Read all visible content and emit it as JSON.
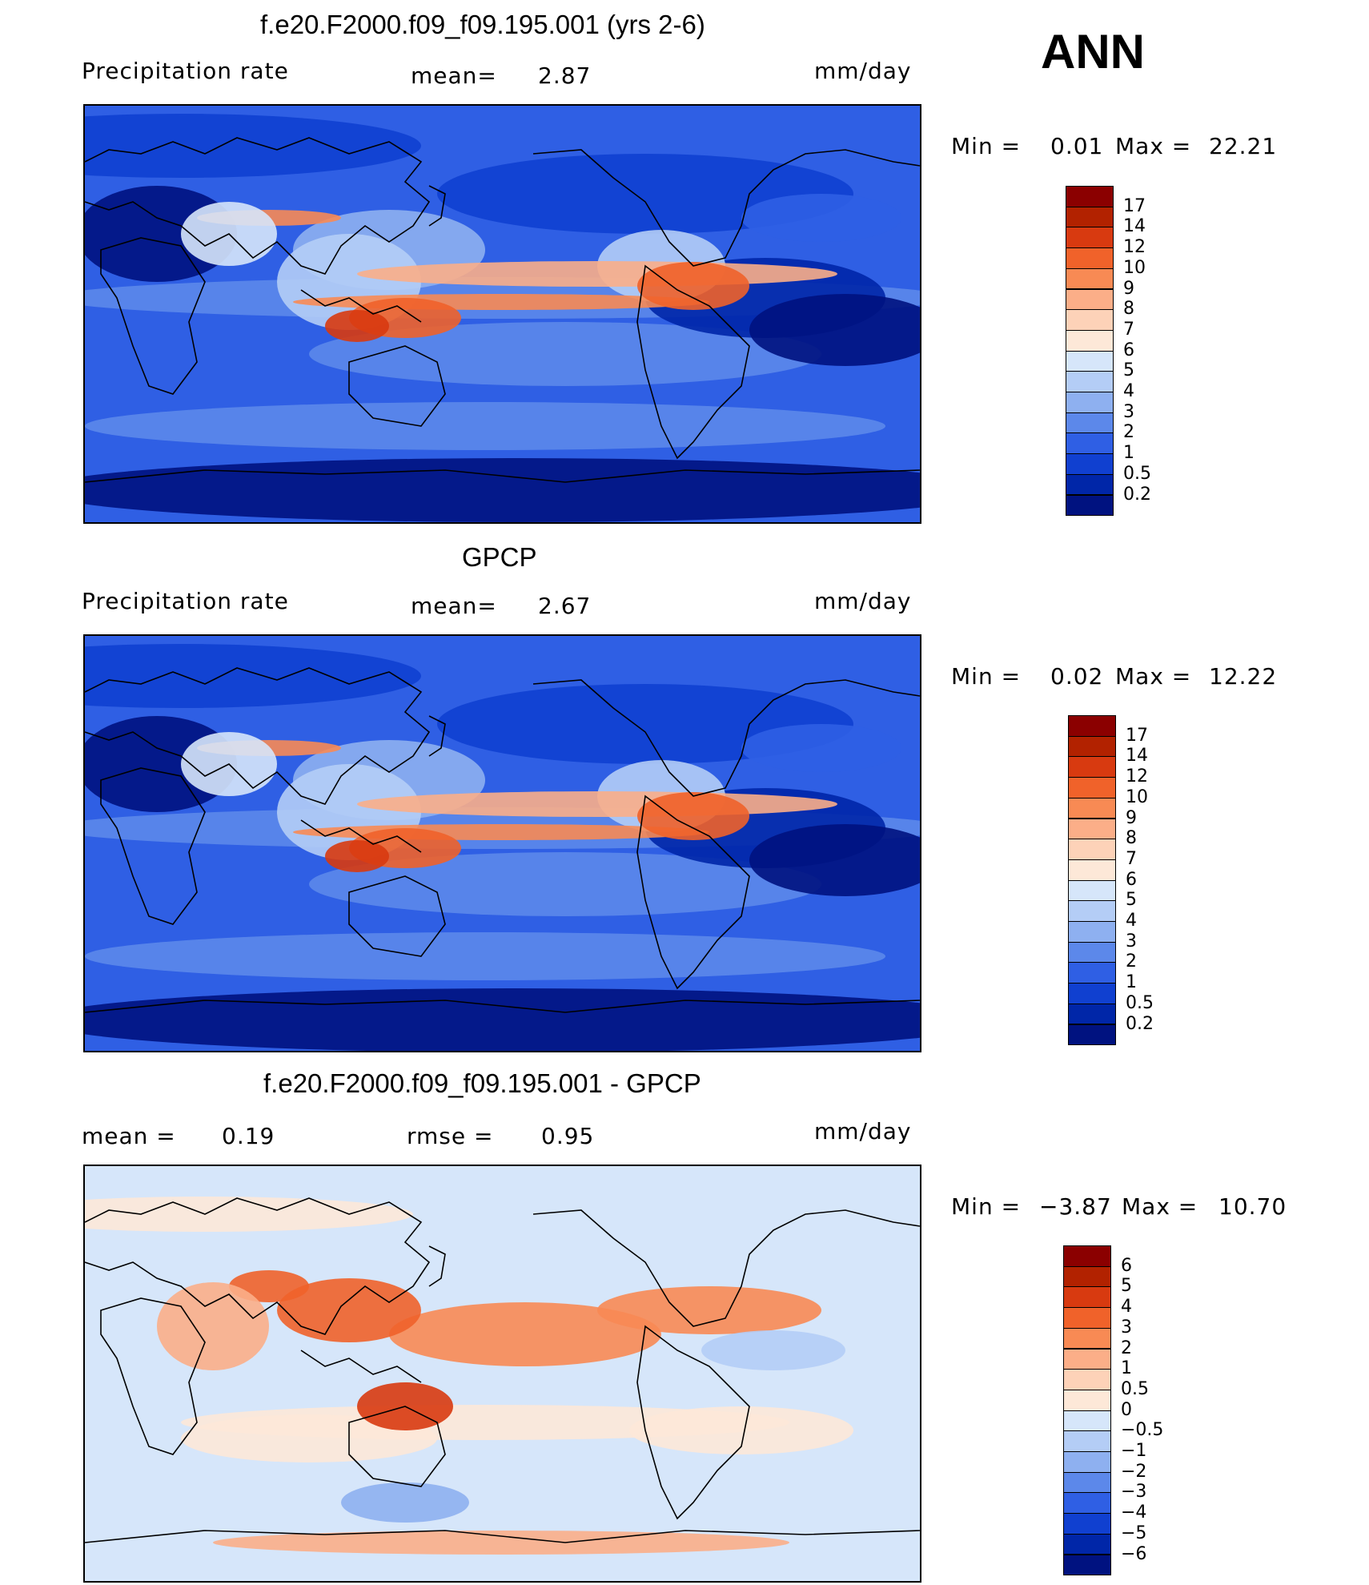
{
  "season": "ANN",
  "panels": [
    {
      "id": "model",
      "title": "f.e20.F2000.f09_f09.195.001 (yrs 2-6)",
      "left_label": "Precipitation  rate",
      "center_label": "mean=",
      "center_value": "2.87",
      "right_label": "mm/day",
      "minmax": {
        "min_label": "Min  =",
        "min": "0.01",
        "max_label": "Max  =",
        "max": "22.21"
      },
      "colorbar": {
        "ticks": [
          "17",
          "14",
          "12",
          "10",
          "9",
          "8",
          "7",
          "6",
          "5",
          "4",
          "3",
          "2",
          "1",
          "0.5",
          "0.2"
        ],
        "colors": [
          "#8b0000",
          "#b22200",
          "#d83a10",
          "#f0622a",
          "#f88a54",
          "#fbae88",
          "#fdd2b8",
          "#fde8d8",
          "#d6e6fa",
          "#b4cdf6",
          "#8eb0f0",
          "#5c88ea",
          "#2f5fe4",
          "#1040d0",
          "#0026a8",
          "#001280"
        ]
      },
      "map_stats": {
        "min": 0.01,
        "max": 22.21
      }
    },
    {
      "id": "obs",
      "title": "GPCP",
      "left_label": "Precipitation  rate",
      "center_label": "mean=",
      "center_value": "2.67",
      "right_label": "mm/day",
      "minmax": {
        "min_label": "Min  =",
        "min": "0.02",
        "max_label": "Max  =",
        "max": "12.22"
      },
      "colorbar": {
        "ticks": [
          "17",
          "14",
          "12",
          "10",
          "9",
          "8",
          "7",
          "6",
          "5",
          "4",
          "3",
          "2",
          "1",
          "0.5",
          "0.2"
        ],
        "colors": [
          "#8b0000",
          "#b22200",
          "#d83a10",
          "#f0622a",
          "#f88a54",
          "#fbae88",
          "#fdd2b8",
          "#fde8d8",
          "#d6e6fa",
          "#b4cdf6",
          "#8eb0f0",
          "#5c88ea",
          "#2f5fe4",
          "#1040d0",
          "#0026a8",
          "#001280"
        ]
      },
      "map_stats": {
        "min": 0.02,
        "max": 12.22
      }
    },
    {
      "id": "diff",
      "title": "f.e20.F2000.f09_f09.195.001 - GPCP",
      "left_label": "mean  =",
      "left_value": "0.19",
      "center_label": "rmse  =",
      "center_value": "0.95",
      "right_label": "mm/day",
      "minmax": {
        "min_label": "Min  =",
        "min": "−3.87",
        "max_label": "Max  =",
        "max": "10.70"
      },
      "colorbar": {
        "ticks": [
          "6",
          "5",
          "4",
          "3",
          "2",
          "1",
          "0.5",
          "0",
          "−0.5",
          "−1",
          "−2",
          "−3",
          "−4",
          "−5",
          "−6"
        ],
        "colors": [
          "#8b0000",
          "#b22200",
          "#d83a10",
          "#f0622a",
          "#f88a54",
          "#fbae88",
          "#fdd2b8",
          "#fde8d8",
          "#d6e6fa",
          "#b4cdf6",
          "#8eb0f0",
          "#5c88ea",
          "#2f5fe4",
          "#1040d0",
          "#0026a8",
          "#001280"
        ]
      },
      "map_stats": {
        "min": -3.87,
        "max": 10.7
      }
    }
  ]
}
